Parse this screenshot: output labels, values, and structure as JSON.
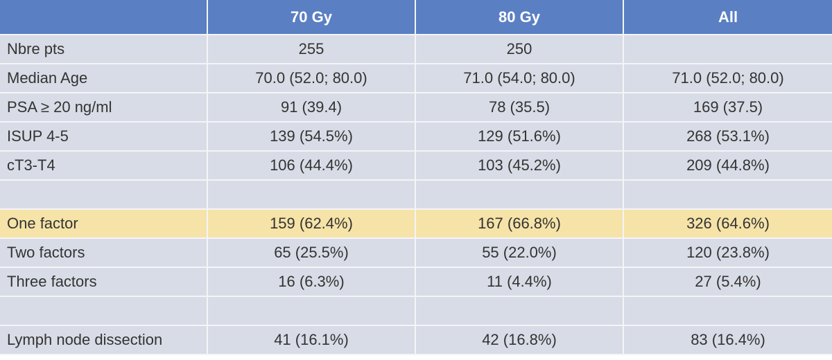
{
  "table": {
    "header": [
      null,
      "70 Gy",
      "80 Gy",
      "All"
    ],
    "rows": [
      {
        "label": "Nbre pts",
        "cells": [
          "255",
          "250",
          null
        ]
      },
      {
        "label": "Median Age",
        "cells": [
          "70.0 (52.0; 80.0)",
          "71.0 (54.0; 80.0)",
          "71.0 (52.0; 80.0)"
        ]
      },
      {
        "label": "PSA ≥ 20 ng/ml",
        "cells": [
          "91 (39.4)",
          "78 (35.5)",
          "169 (37.5)"
        ]
      },
      {
        "label": "ISUP 4-5",
        "cells": [
          "139 (54.5%)",
          "129 (51.6%)",
          "268 (53.1%)"
        ]
      },
      {
        "label": "cT3-T4",
        "cells": [
          "106 (44.4%)",
          "103 (45.2%)",
          "209 (44.8%)"
        ]
      },
      null,
      {
        "label": "One factor",
        "cells": [
          "159 (62.4%)",
          "167 (66.8%)",
          "326 (64.6%)"
        ]
      },
      {
        "label": "Two factors",
        "cells": [
          "65 (25.5%)",
          "55 (22.0%)",
          "120 (23.8%)"
        ]
      },
      {
        "label": "Three factors",
        "cells": [
          "16 (6.3%)",
          "11 (4.4%)",
          "27 (5.4%)"
        ]
      },
      null,
      {
        "label": "Lymph node dissection",
        "cells": [
          "41 (16.1%)",
          "42 (16.8%)",
          "83 (16.4%)"
        ]
      }
    ]
  }
}
